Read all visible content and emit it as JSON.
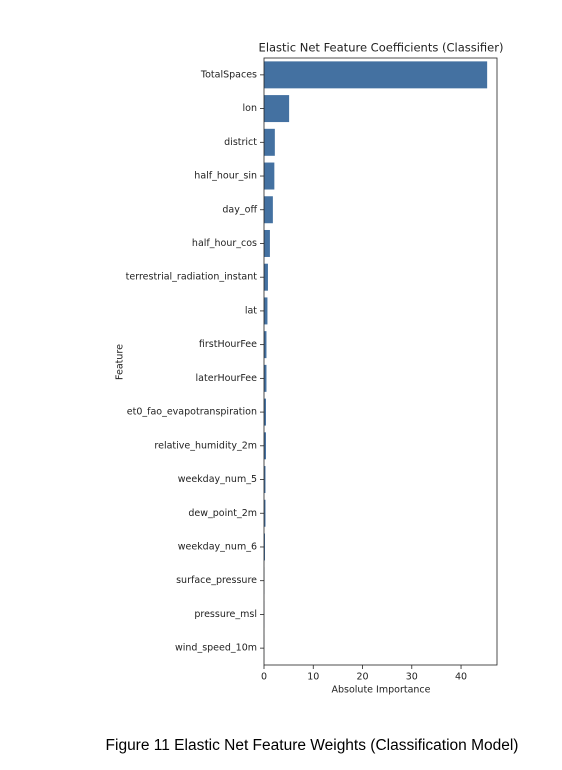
{
  "chart_data": {
    "type": "bar",
    "orientation": "horizontal",
    "title": "Elastic Net Feature Coefficients (Classifier)",
    "x_label": "Absolute Importance",
    "y_label": "Feature",
    "categories": [
      "TotalSpaces",
      "lon",
      "district",
      "half_hour_sin",
      "day_off",
      "half_hour_cos",
      "terrestrial_radiation_instant",
      "lat",
      "firstHourFee",
      "laterHourFee",
      "et0_fao_evapotranspiration",
      "relative_humidity_2m",
      "weekday_num_5",
      "dew_point_2m",
      "weekday_num_6",
      "surface_pressure",
      "pressure_msl",
      "wind_speed_10m"
    ],
    "values": [
      45.3,
      5.1,
      2.2,
      2.1,
      1.8,
      1.2,
      0.8,
      0.7,
      0.5,
      0.5,
      0.4,
      0.4,
      0.3,
      0.3,
      0.2,
      0.05,
      0.03,
      0.02
    ],
    "color": "#4471a1",
    "xlim": [
      0,
      47.3
    ],
    "xticks": [
      0,
      10,
      20,
      30,
      40
    ],
    "grid": false
  },
  "caption": "Figure 11 Elastic Net Feature Weights (Classification Model)"
}
